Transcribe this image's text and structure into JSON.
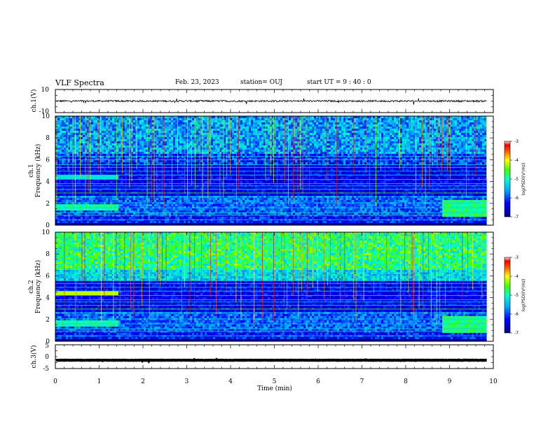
{
  "header": {
    "title": "VLF Spectra",
    "date": "Feb. 23, 2023",
    "station": "station= OUJ",
    "start": "start  UT =   9 : 40 : 0"
  },
  "chart_data": [
    {
      "type": "line",
      "panel": "ch1-waveform",
      "ylabel": "ch.1(V)",
      "ylim": [
        -10,
        10
      ],
      "y_ticks": [
        "10",
        "-10"
      ],
      "x_range": [
        0,
        10
      ],
      "data_end_min": 9.85,
      "baseline": 0,
      "noise_amplitude": 1.5
    },
    {
      "type": "heatmap",
      "panel": "ch1-spectrogram",
      "ylabel": "ch.1\nFrequency (kHz)",
      "ylabel_lines": [
        "ch.1",
        "Frequency (kHz)"
      ],
      "ylim": [
        0,
        10
      ],
      "y_ticks": [
        "0",
        "2",
        "4",
        "6",
        "8",
        "10"
      ],
      "x_range": [
        0,
        10
      ],
      "data_end_min": 9.85,
      "colorbar": {
        "label": "log(PSD)(V²/Hz)",
        "range": [
          -7,
          -3
        ],
        "ticks": [
          "-3",
          "-4",
          "-5",
          "-6",
          "-7"
        ]
      },
      "features": {
        "upper_band_level": -5.6,
        "sferic_density": "high"
      }
    },
    {
      "type": "heatmap",
      "panel": "ch2-spectrogram",
      "ylabel": "ch.2\nFrequency (kHz)",
      "ylabel_lines": [
        "ch.2",
        "Frequency (kHz)"
      ],
      "ylim": [
        0,
        10
      ],
      "y_ticks": [
        "0",
        "2",
        "4",
        "6",
        "8",
        "10"
      ],
      "x_range": [
        0,
        10
      ],
      "data_end_min": 9.85,
      "colorbar": {
        "label": "log(PSD)(V²/Hz)",
        "range": [
          -7,
          -3
        ],
        "ticks": [
          "-3",
          "-4",
          "-5",
          "-6",
          "-7"
        ]
      },
      "features": {
        "upper_band_level": -4.8,
        "sferic_density": "high"
      }
    },
    {
      "type": "line",
      "panel": "ch3-waveform",
      "ylabel": "ch.3(V)",
      "ylim": [
        -5,
        5
      ],
      "y_ticks": [
        "5",
        "0",
        "-5"
      ],
      "x_range": [
        0,
        10
      ],
      "data_end_min": 9.85,
      "baseline": -1.5,
      "noise_amplitude": 0.15
    }
  ],
  "x_axis": {
    "label": "Time (min)",
    "ticks": [
      "0",
      "1",
      "2",
      "3",
      "4",
      "5",
      "6",
      "7",
      "8",
      "9",
      "10"
    ],
    "range": [
      0,
      10
    ]
  }
}
